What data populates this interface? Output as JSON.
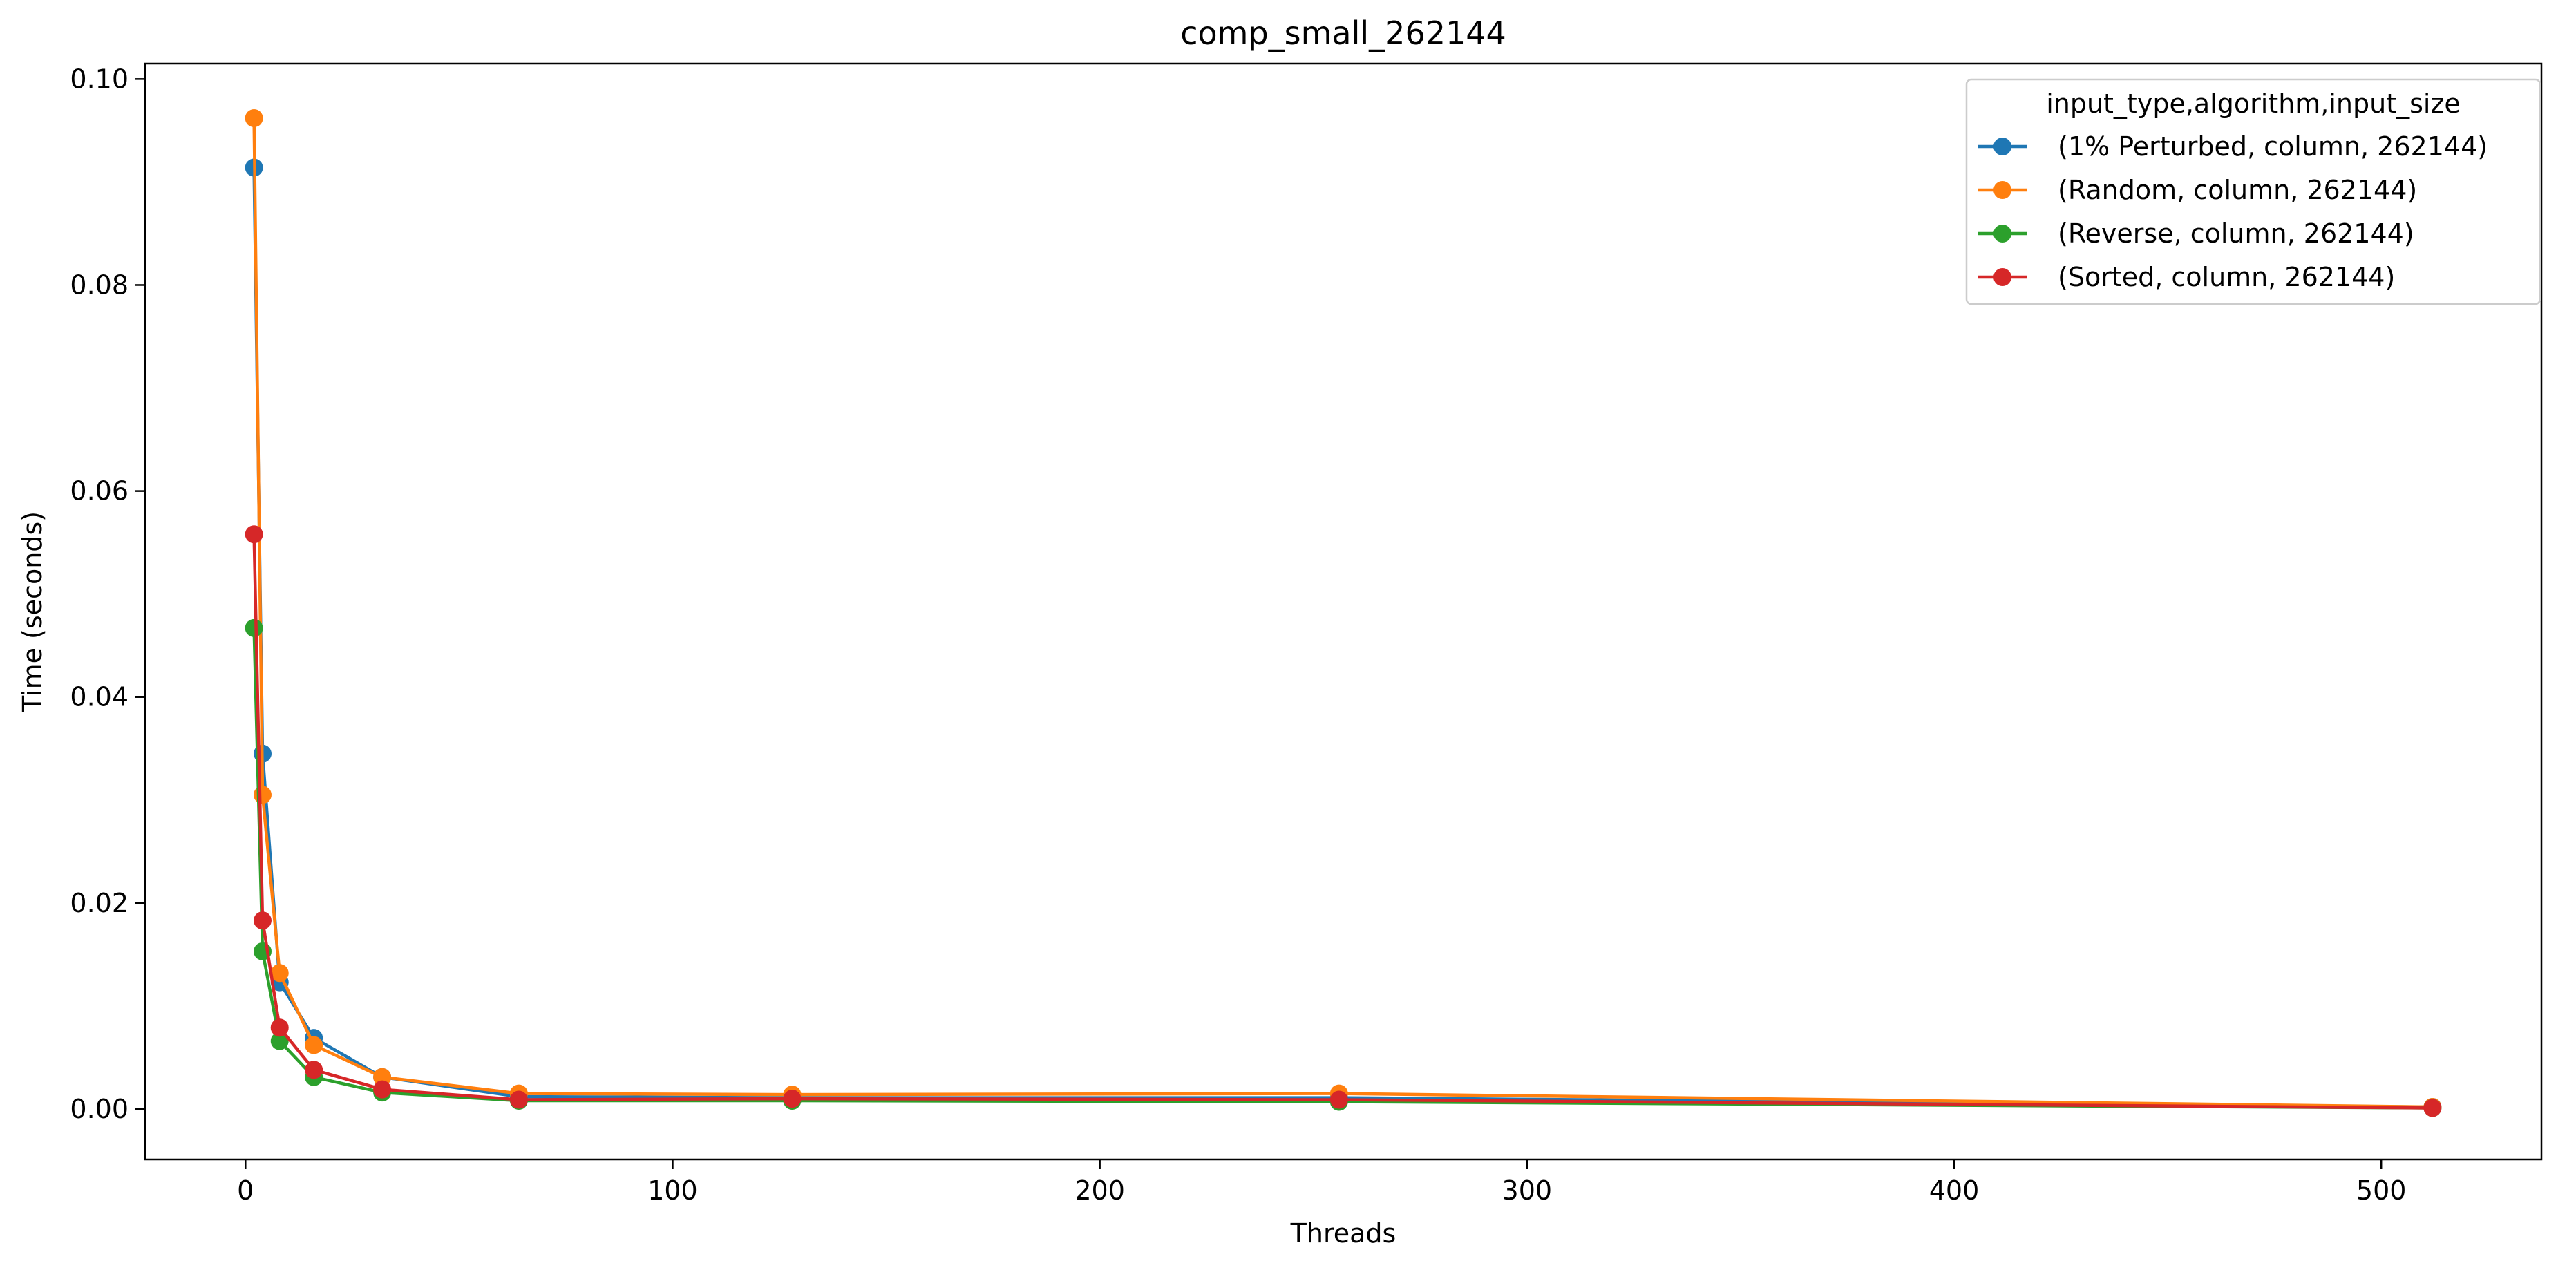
{
  "chart_data": {
    "type": "line",
    "title": "comp_small_262144",
    "xlabel": "Threads",
    "ylabel": "Time (seconds)",
    "xlim": [
      -23.5,
      537.5
    ],
    "ylim": [
      -0.0049,
      0.1015
    ],
    "x_ticks": [
      0,
      100,
      200,
      300,
      400,
      500
    ],
    "x_tick_labels": [
      "0",
      "100",
      "200",
      "300",
      "400",
      "500"
    ],
    "y_ticks": [
      0.0,
      0.02,
      0.04,
      0.06,
      0.08,
      0.1
    ],
    "y_tick_labels": [
      "0.00",
      "0.02",
      "0.04",
      "0.06",
      "0.08",
      "0.10"
    ],
    "grid": false,
    "legend": {
      "title": "input_type,algorithm,input_size",
      "placement": "top-right"
    },
    "x": [
      2,
      4,
      8,
      16,
      32,
      64,
      128,
      256,
      512
    ],
    "series": [
      {
        "name": "(1% Perturbed, column, 262144)",
        "color": "#1f77b4",
        "values": [
          0.0914,
          0.0345,
          0.0123,
          0.0069,
          0.0031,
          0.0012,
          0.0011,
          0.0011,
          0.0002
        ]
      },
      {
        "name": "(Random, column, 262144)",
        "color": "#ff7f0e",
        "values": [
          0.0962,
          0.0305,
          0.0132,
          0.0062,
          0.0031,
          0.0015,
          0.0014,
          0.0015,
          0.0002
        ]
      },
      {
        "name": "(Reverse, column, 262144)",
        "color": "#2ca02c",
        "values": [
          0.0467,
          0.0153,
          0.0066,
          0.0031,
          0.0016,
          0.0008,
          0.0008,
          0.0007,
          0.0001
        ]
      },
      {
        "name": "(Sorted, column, 262144)",
        "color": "#d62728",
        "values": [
          0.0558,
          0.0183,
          0.0079,
          0.0038,
          0.0019,
          0.0009,
          0.001,
          0.0009,
          0.0001
        ]
      }
    ]
  }
}
